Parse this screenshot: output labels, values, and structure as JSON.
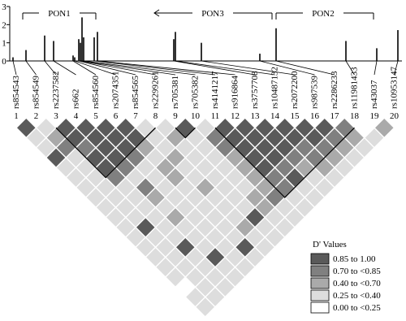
{
  "chart_data": {
    "type": "ld-plot",
    "genes": [
      "PON1",
      "PON3",
      "PON2"
    ],
    "association": {
      "ylim": [
        0,
        3
      ],
      "yticks": [
        0,
        1,
        2,
        3
      ],
      "color": "#000000",
      "values": [
        0.2,
        0.6,
        1.4,
        1.1,
        0.3,
        0.2,
        1.2,
        1.0,
        2.4,
        1.3,
        1.3,
        1.6,
        1.2,
        1.6,
        1.0,
        0.4,
        1.8,
        1.1,
        0.7,
        1.7
      ]
    },
    "snps": [
      "rs854543",
      "rs854549",
      "rs2237582",
      "rs662",
      "rs854560",
      "rs2074351",
      "rs854565",
      "rs2299261",
      "rs705381",
      "rs705382",
      "rs4141217",
      "rs916864",
      "rs3757708",
      "rs10487132",
      "rs2072200",
      "rs987539",
      "rs2286233",
      "rs11981433",
      "rs43037",
      "rs10953147"
    ],
    "snp_indices": [
      1,
      2,
      3,
      4,
      5,
      6,
      7,
      8,
      9,
      10,
      11,
      12,
      13,
      14,
      15,
      16,
      17,
      18,
      19,
      20
    ],
    "legend": {
      "title": "D' Values",
      "entries": [
        {
          "min": 0.85,
          "max": 1.0,
          "label": "0.85 to 1.00",
          "color": "#5a5a5a"
        },
        {
          "min": 0.7,
          "max": 0.85,
          "label": "0.70 to <0.85",
          "color": "#808080"
        },
        {
          "min": 0.4,
          "max": 0.7,
          "label": "0.40 to <0.70",
          "color": "#aaaaaa"
        },
        {
          "min": 0.25,
          "max": 0.4,
          "label": "0.25 to <0.40",
          "color": "#dddddd"
        },
        {
          "min": 0.0,
          "max": 0.25,
          "label": "0.00 to <0.25",
          "color": "#ffffff"
        }
      ]
    },
    "ld": {
      "rows": [
        [
          0.9,
          0.3,
          0.9,
          0.9,
          0.9,
          0.9,
          0.3,
          0.3,
          0.9,
          0.3,
          0.9,
          0.9,
          0.9,
          0.9,
          0.9,
          0.9,
          0.78,
          0.1,
          0.55
        ],
        [
          0.3,
          0.55,
          0.9,
          0.9,
          0.9,
          0.9,
          0.3,
          0.55,
          0.3,
          0.78,
          0.9,
          0.9,
          0.9,
          0.9,
          0.9,
          0.78,
          0.55,
          0.3
        ],
        [
          0.3,
          0.78,
          0.78,
          0.9,
          0.9,
          0.55,
          0.3,
          0.3,
          0.3,
          0.78,
          0.9,
          0.9,
          0.9,
          0.78,
          0.78,
          0.55,
          0.3
        ],
        [
          0.9,
          0.3,
          0.9,
          0.9,
          0.78,
          0.3,
          0.55,
          0.3,
          0.3,
          0.55,
          0.9,
          0.9,
          0.78,
          0.78,
          0.55,
          0.3
        ],
        [
          0.3,
          0.3,
          0.9,
          0.78,
          0.3,
          0.55,
          0.3,
          0.3,
          0.3,
          0.55,
          0.9,
          0.78,
          0.55,
          0.55,
          0.3
        ],
        [
          0.3,
          0.3,
          0.78,
          0.3,
          0.3,
          0.55,
          0.3,
          0.3,
          0.3,
          0.55,
          0.78,
          0.9,
          0.3,
          0.3
        ],
        [
          0.3,
          0.3,
          0.3,
          0.78,
          0.3,
          0.3,
          0.55,
          0.3,
          0.3,
          0.55,
          0.78,
          0.3,
          0.3
        ],
        [
          0.3,
          0.3,
          0.3,
          0.55,
          0.3,
          0.3,
          0.3,
          0.3,
          0.55,
          0.78,
          0.3,
          0.3
        ],
        [
          0.3,
          0.3,
          0.3,
          0.3,
          0.3,
          0.3,
          0.3,
          0.3,
          0.55,
          0.3,
          0.3
        ],
        [
          0.3,
          0.3,
          0.3,
          0.55,
          0.3,
          0.3,
          0.3,
          0.9,
          0.3,
          0.3
        ],
        [
          0.3,
          0.9,
          0.3,
          0.3,
          0.3,
          0.3,
          0.55,
          0.3,
          0.3
        ],
        [
          0.3,
          0.3,
          0.3,
          0.3,
          0.3,
          0.3,
          0.3,
          0.3
        ],
        [
          0.3,
          0.3,
          0.9,
          0.3,
          0.3,
          0.9,
          0.3
        ],
        [
          0.3,
          0.3,
          0.3,
          0.9,
          0.3,
          0.3
        ],
        [
          0.3,
          0.3,
          0.3,
          0.3,
          0.3
        ],
        [
          0.3,
          0.3,
          0.3,
          0.3
        ],
        [
          0.1,
          0.3,
          0.3
        ],
        [
          0.3,
          0.3
        ],
        [
          0.3
        ]
      ]
    }
  }
}
